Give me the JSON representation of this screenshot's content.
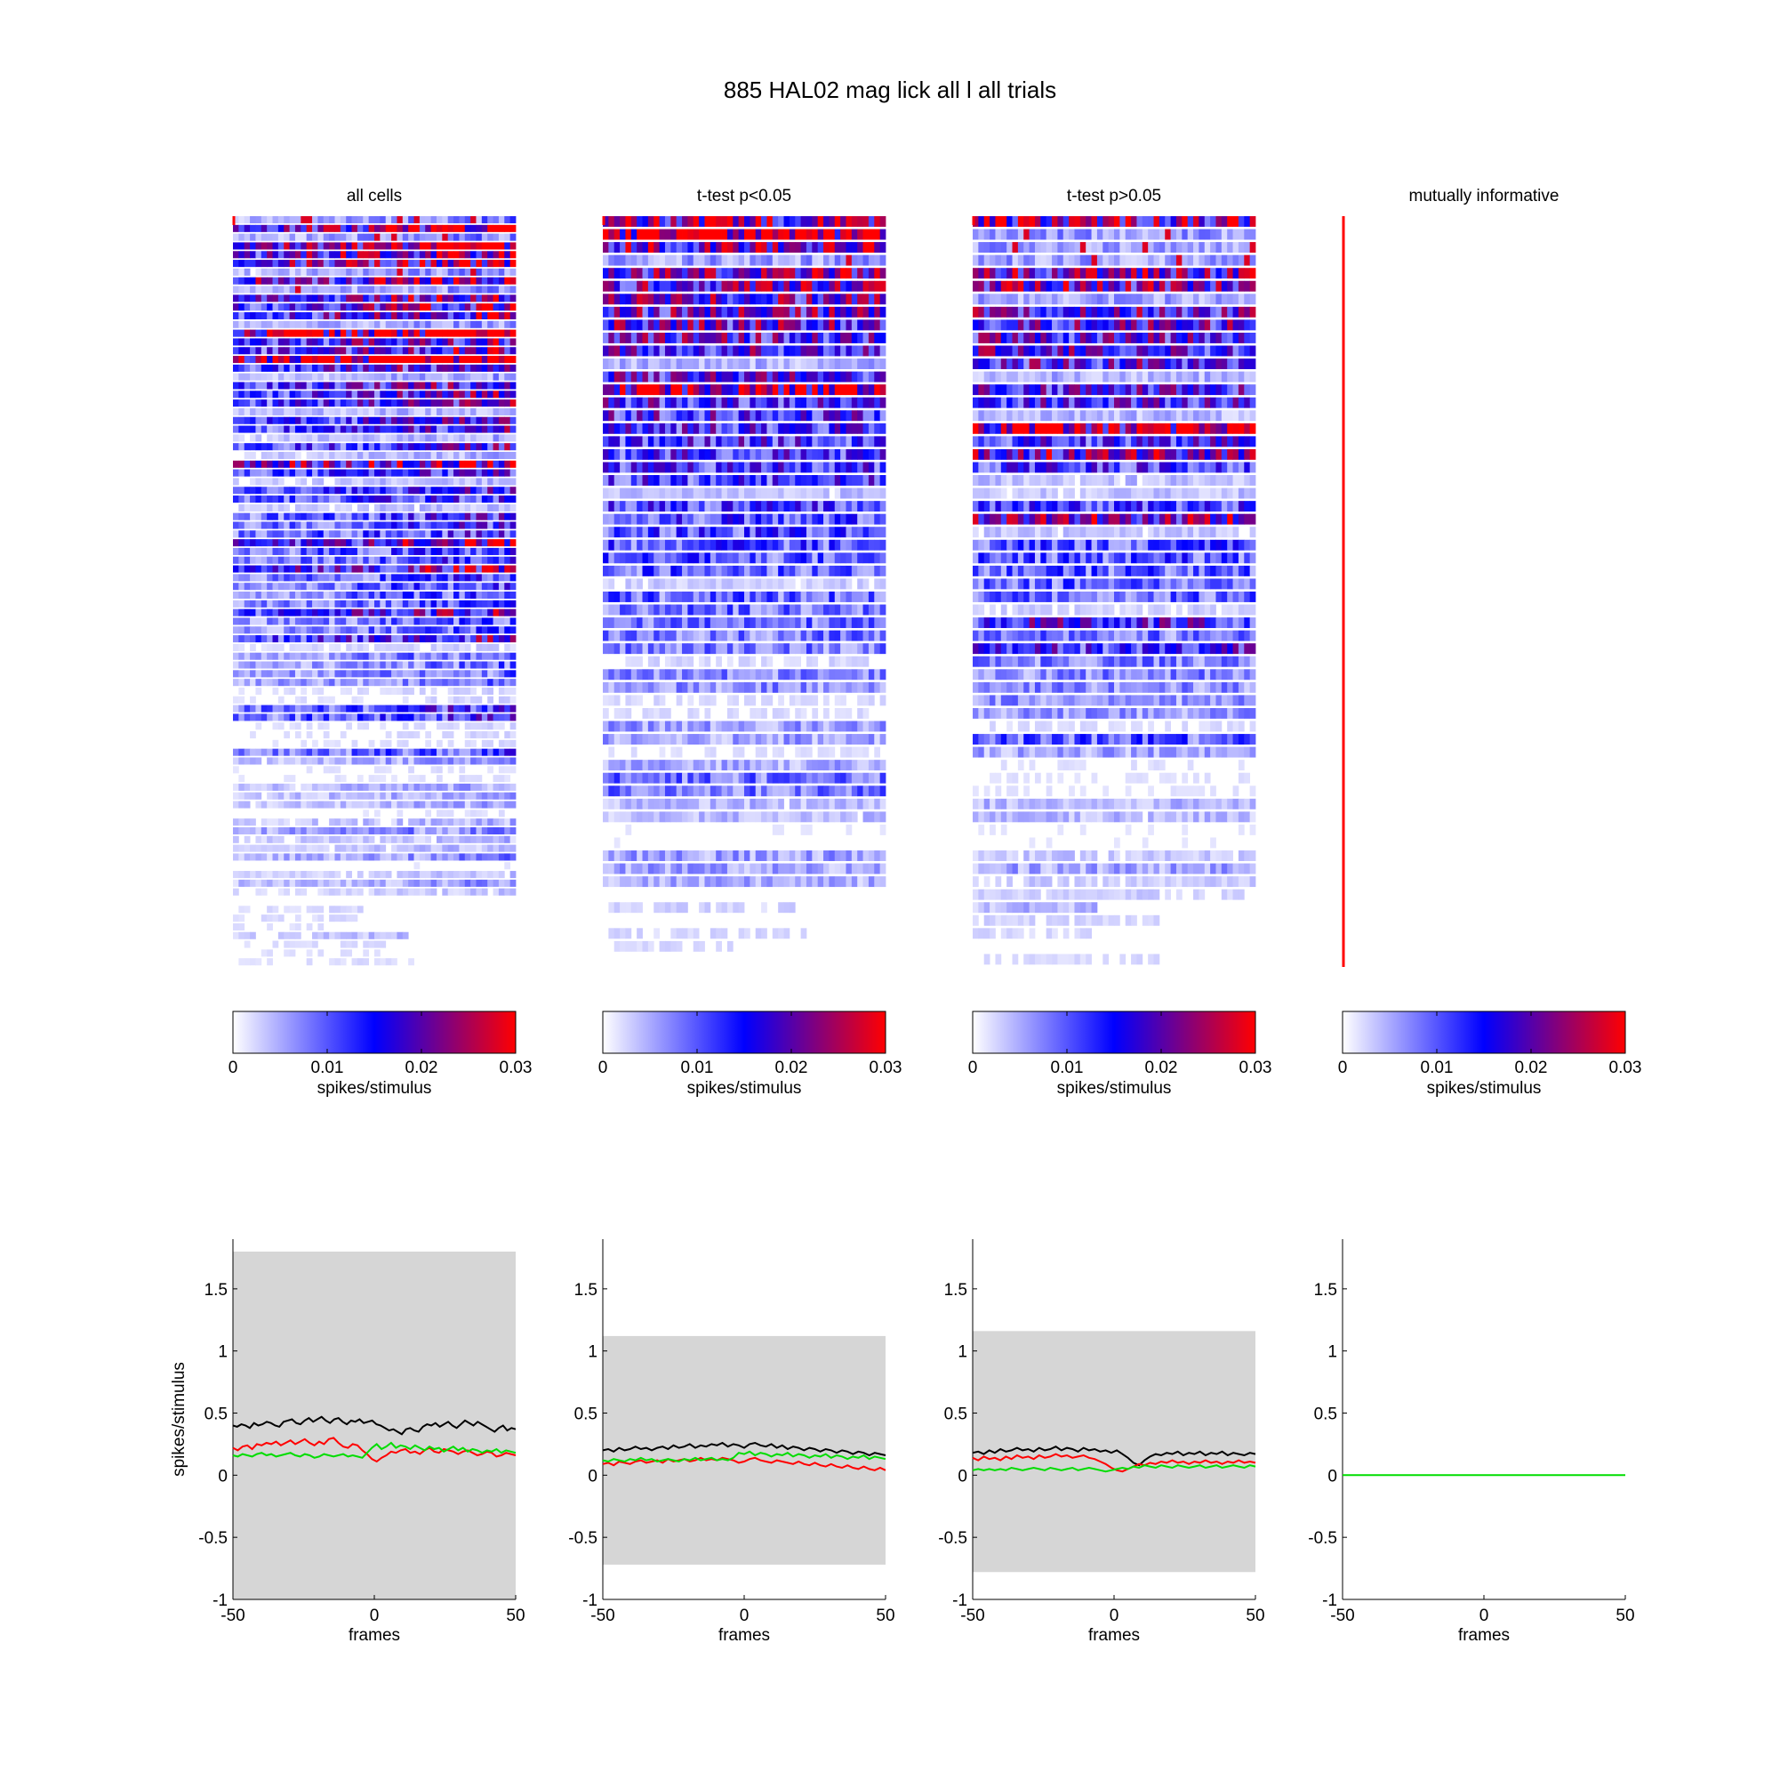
{
  "figure": {
    "title": "885 HAL02 mag lick  all l all trials"
  },
  "colors": {
    "background": "#ffffff",
    "heat_low": "#ffffff",
    "heat_mid": "#0000ff",
    "heat_high": "#ff0000",
    "event_line": "#ff0000",
    "band": "#d6d6d6",
    "series_black": "#000000",
    "series_red": "#ff0000",
    "series_green": "#00dd00"
  },
  "colorbar": {
    "label": "spikes/stimulus",
    "ticks": [
      "0",
      "0.01",
      "0.02",
      "0.03"
    ],
    "range": [
      0,
      0.03
    ]
  },
  "chart_data": [
    {
      "type": "heatmap",
      "title": "all cells",
      "rows": 86,
      "columns": 100,
      "value_range": [
        0,
        0.03
      ],
      "x_range": [
        -50,
        50
      ],
      "description_pattern": "rows of spikes/stimulus per frame; dense blue with red hotspots in the top rows, sparse near bottom",
      "event_marker_frame": -50
    },
    {
      "type": "heatmap",
      "title": "t-test p<0.05",
      "rows": 58,
      "columns": 100,
      "value_range": [
        0,
        0.03
      ],
      "x_range": [
        -50,
        50
      ],
      "event_marker_frame": -50
    },
    {
      "type": "heatmap",
      "title": "t-test p>0.05",
      "rows": 58,
      "columns": 100,
      "value_range": [
        0,
        0.03
      ],
      "x_range": [
        -50,
        50
      ],
      "event_marker_frame": -50
    },
    {
      "type": "heatmap",
      "title": "mutually informative",
      "rows": 0,
      "columns": 100,
      "value_range": [
        0,
        0.03
      ],
      "x_range": [
        -50,
        50
      ],
      "event_marker_frame": -50
    },
    {
      "type": "line",
      "xlabel": "frames",
      "ylabel": "spikes/stimulus",
      "xlim": [
        -50,
        50
      ],
      "ylim": [
        -1,
        1.9
      ],
      "xticks": [
        "-50",
        "0",
        "50"
      ],
      "yticks": [
        "-1",
        "-0.5",
        "0",
        "0.5",
        "1",
        "1.5"
      ],
      "band": [
        -1,
        1.8
      ],
      "series": [
        {
          "color": "black",
          "values": [
            0.4,
            0.39,
            0.41,
            0.4,
            0.38,
            0.42,
            0.4,
            0.41,
            0.43,
            0.42,
            0.4,
            0.39,
            0.43,
            0.44,
            0.45,
            0.42,
            0.41,
            0.44,
            0.46,
            0.43,
            0.45,
            0.47,
            0.44,
            0.42,
            0.45,
            0.46,
            0.43,
            0.41,
            0.44,
            0.43,
            0.45,
            0.42,
            0.43,
            0.44,
            0.41,
            0.4,
            0.38,
            0.36,
            0.37,
            0.35,
            0.33,
            0.37,
            0.38,
            0.36,
            0.35,
            0.39,
            0.41,
            0.4,
            0.42,
            0.39,
            0.41,
            0.43,
            0.4,
            0.38,
            0.41,
            0.44,
            0.42,
            0.4,
            0.43,
            0.41,
            0.39,
            0.37,
            0.35,
            0.38,
            0.4,
            0.36,
            0.38,
            0.37
          ]
        },
        {
          "color": "red",
          "values": [
            0.22,
            0.2,
            0.23,
            0.24,
            0.21,
            0.25,
            0.24,
            0.26,
            0.25,
            0.27,
            0.24,
            0.26,
            0.28,
            0.25,
            0.27,
            0.29,
            0.26,
            0.24,
            0.27,
            0.25,
            0.29,
            0.3,
            0.26,
            0.23,
            0.22,
            0.25,
            0.24,
            0.2,
            0.17,
            0.13,
            0.11,
            0.14,
            0.16,
            0.19,
            0.18,
            0.2,
            0.21,
            0.18,
            0.19,
            0.17,
            0.2,
            0.22,
            0.19,
            0.18,
            0.21,
            0.2,
            0.19,
            0.17,
            0.19,
            0.2,
            0.18,
            0.16,
            0.17,
            0.19,
            0.18,
            0.15,
            0.16,
            0.18,
            0.17,
            0.16
          ]
        },
        {
          "color": "green",
          "values": [
            0.16,
            0.15,
            0.17,
            0.16,
            0.15,
            0.17,
            0.18,
            0.16,
            0.17,
            0.15,
            0.16,
            0.17,
            0.18,
            0.16,
            0.15,
            0.17,
            0.16,
            0.14,
            0.15,
            0.17,
            0.16,
            0.15,
            0.16,
            0.17,
            0.15,
            0.16,
            0.15,
            0.14,
            0.18,
            0.22,
            0.25,
            0.21,
            0.23,
            0.26,
            0.22,
            0.24,
            0.23,
            0.21,
            0.24,
            0.22,
            0.2,
            0.23,
            0.21,
            0.22,
            0.19,
            0.21,
            0.23,
            0.2,
            0.22,
            0.19,
            0.21,
            0.2,
            0.18,
            0.2,
            0.19,
            0.21,
            0.18,
            0.2,
            0.19,
            0.18
          ]
        }
      ]
    },
    {
      "type": "line",
      "xlabel": "frames",
      "xlim": [
        -50,
        50
      ],
      "ylim": [
        -1,
        1.9
      ],
      "xticks": [
        "-50",
        "0",
        "50"
      ],
      "yticks": [
        "-1",
        "-0.5",
        "0",
        "0.5",
        "1",
        "1.5"
      ],
      "band": [
        -0.72,
        1.12
      ],
      "series": [
        {
          "color": "black",
          "values": [
            0.2,
            0.21,
            0.19,
            0.22,
            0.2,
            0.21,
            0.23,
            0.21,
            0.22,
            0.2,
            0.22,
            0.23,
            0.21,
            0.24,
            0.22,
            0.23,
            0.25,
            0.22,
            0.24,
            0.23,
            0.25,
            0.24,
            0.26,
            0.23,
            0.25,
            0.24,
            0.22,
            0.25,
            0.26,
            0.24,
            0.23,
            0.25,
            0.22,
            0.24,
            0.21,
            0.23,
            0.22,
            0.2,
            0.22,
            0.21,
            0.19,
            0.21,
            0.2,
            0.18,
            0.2,
            0.19,
            0.17,
            0.19,
            0.18,
            0.16,
            0.18,
            0.17,
            0.16
          ]
        },
        {
          "color": "red",
          "values": [
            0.09,
            0.1,
            0.08,
            0.11,
            0.1,
            0.09,
            0.11,
            0.12,
            0.1,
            0.11,
            0.12,
            0.1,
            0.13,
            0.11,
            0.12,
            0.13,
            0.11,
            0.12,
            0.14,
            0.12,
            0.13,
            0.12,
            0.14,
            0.13,
            0.12,
            0.1,
            0.11,
            0.13,
            0.14,
            0.12,
            0.11,
            0.1,
            0.12,
            0.11,
            0.1,
            0.09,
            0.11,
            0.09,
            0.08,
            0.1,
            0.08,
            0.07,
            0.09,
            0.07,
            0.06,
            0.08,
            0.06,
            0.05,
            0.07,
            0.05,
            0.04,
            0.06,
            0.04
          ]
        },
        {
          "color": "green",
          "values": [
            0.12,
            0.11,
            0.13,
            0.12,
            0.11,
            0.13,
            0.12,
            0.14,
            0.12,
            0.13,
            0.11,
            0.12,
            0.13,
            0.12,
            0.11,
            0.13,
            0.12,
            0.14,
            0.12,
            0.13,
            0.14,
            0.12,
            0.13,
            0.12,
            0.14,
            0.18,
            0.17,
            0.19,
            0.16,
            0.18,
            0.17,
            0.15,
            0.17,
            0.16,
            0.18,
            0.15,
            0.17,
            0.16,
            0.14,
            0.16,
            0.15,
            0.17,
            0.14,
            0.16,
            0.15,
            0.13,
            0.15,
            0.14,
            0.16,
            0.13,
            0.15,
            0.14,
            0.13
          ]
        }
      ]
    },
    {
      "type": "line",
      "xlabel": "frames",
      "xlim": [
        -50,
        50
      ],
      "ylim": [
        -1,
        1.9
      ],
      "xticks": [
        "-50",
        "0",
        "50"
      ],
      "yticks": [
        "-1",
        "-0.5",
        "0",
        "0.5",
        "1",
        "1.5"
      ],
      "band": [
        -0.78,
        1.16
      ],
      "series": [
        {
          "color": "black",
          "values": [
            0.18,
            0.19,
            0.17,
            0.2,
            0.18,
            0.21,
            0.19,
            0.2,
            0.22,
            0.2,
            0.21,
            0.19,
            0.22,
            0.2,
            0.21,
            0.23,
            0.2,
            0.22,
            0.21,
            0.19,
            0.22,
            0.2,
            0.21,
            0.19,
            0.2,
            0.18,
            0.2,
            0.17,
            0.14,
            0.1,
            0.08,
            0.12,
            0.15,
            0.17,
            0.16,
            0.18,
            0.17,
            0.19,
            0.16,
            0.18,
            0.17,
            0.19,
            0.16,
            0.18,
            0.17,
            0.19,
            0.16,
            0.18,
            0.17,
            0.16,
            0.18,
            0.17
          ]
        },
        {
          "color": "red",
          "values": [
            0.14,
            0.12,
            0.15,
            0.13,
            0.14,
            0.12,
            0.15,
            0.13,
            0.16,
            0.14,
            0.15,
            0.13,
            0.16,
            0.14,
            0.15,
            0.17,
            0.15,
            0.16,
            0.14,
            0.15,
            0.16,
            0.14,
            0.13,
            0.11,
            0.09,
            0.06,
            0.04,
            0.03,
            0.05,
            0.07,
            0.09,
            0.08,
            0.1,
            0.09,
            0.11,
            0.1,
            0.12,
            0.1,
            0.11,
            0.09,
            0.11,
            0.1,
            0.12,
            0.1,
            0.11,
            0.09,
            0.11,
            0.1,
            0.12,
            0.1,
            0.11,
            0.1
          ]
        },
        {
          "color": "green",
          "values": [
            0.04,
            0.05,
            0.04,
            0.05,
            0.04,
            0.05,
            0.04,
            0.06,
            0.05,
            0.04,
            0.05,
            0.06,
            0.05,
            0.04,
            0.06,
            0.05,
            0.04,
            0.05,
            0.06,
            0.04,
            0.05,
            0.06,
            0.05,
            0.04,
            0.03,
            0.04,
            0.05,
            0.06,
            0.05,
            0.07,
            0.06,
            0.08,
            0.07,
            0.06,
            0.08,
            0.07,
            0.06,
            0.08,
            0.07,
            0.06,
            0.07,
            0.08,
            0.06,
            0.07,
            0.08,
            0.06,
            0.07,
            0.08,
            0.07,
            0.06,
            0.08,
            0.07
          ]
        }
      ]
    },
    {
      "type": "line",
      "xlabel": "frames",
      "xlim": [
        -50,
        50
      ],
      "ylim": [
        -1,
        1.9
      ],
      "xticks": [
        "-50",
        "0",
        "50"
      ],
      "yticks": [
        "-1",
        "-0.5",
        "0",
        "0.5",
        "1",
        "1.5"
      ],
      "band": null,
      "series": [
        {
          "color": "green",
          "values": [
            0,
            0
          ]
        }
      ]
    }
  ]
}
